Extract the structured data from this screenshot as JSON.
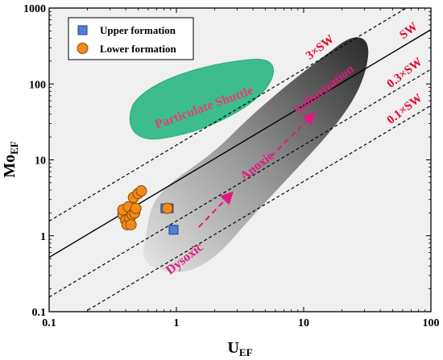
{
  "chart_data": {
    "type": "scatter",
    "xscale": "log",
    "yscale": "log",
    "xlim": [
      0.1,
      100
    ],
    "ylim": [
      0.1,
      1000
    ],
    "xlabel": "U",
    "xlabel_sub": "EF",
    "ylabel": "Mo",
    "ylabel_sub": "EF",
    "x_ticks": [
      0.1,
      1,
      10,
      100
    ],
    "x_tick_labels": [
      "0.1",
      "1",
      "10",
      "100"
    ],
    "y_ticks": [
      0.1,
      1,
      10,
      100,
      1000
    ],
    "y_tick_labels": [
      "0.1",
      "1",
      "10",
      "100",
      "1000"
    ],
    "legend": {
      "position": "top-left"
    },
    "series": [
      {
        "name": "Upper formation",
        "marker": "square",
        "color": "#4f7fd6",
        "points": [
          [
            0.82,
            2.3
          ],
          [
            0.87,
            2.3
          ],
          [
            0.95,
            1.2
          ]
        ]
      },
      {
        "name": "Lower formation",
        "marker": "circle",
        "color": "#f08a1c",
        "points": [
          [
            0.38,
            1.9
          ],
          [
            0.38,
            2.2
          ],
          [
            0.4,
            1.6
          ],
          [
            0.41,
            1.4
          ],
          [
            0.42,
            2.4
          ],
          [
            0.43,
            1.7
          ],
          [
            0.44,
            1.4
          ],
          [
            0.45,
            1.9
          ],
          [
            0.46,
            3.2
          ],
          [
            0.47,
            2.0
          ],
          [
            0.48,
            2.3
          ],
          [
            0.5,
            3.6
          ],
          [
            0.53,
            3.9
          ],
          [
            0.85,
            2.3
          ]
        ]
      }
    ],
    "reference_lines": [
      {
        "label": "3×SW",
        "ratio": 15.6,
        "style": "dashed",
        "label_color": "#e8002a"
      },
      {
        "label": "SW",
        "ratio": 5.2,
        "style": "solid",
        "label_color": "#e8002a"
      },
      {
        "label": "0.3×SW",
        "ratio": 1.56,
        "style": "dashed",
        "label_color": "#e8002a"
      },
      {
        "label": "0.1×SW",
        "ratio": 0.52,
        "style": "dashed",
        "label_color": "#e8002a"
      }
    ],
    "regions": [
      {
        "label": "Particulate Shuttle",
        "fill": "#3dbd8d",
        "label_color": "#e83c6a"
      },
      {
        "label": "Dysoxic",
        "label_color": "#e0197f"
      },
      {
        "label": "Anoxic",
        "label_color": "#e0197f"
      },
      {
        "label": "Sulfurization",
        "label_color": "#e0197f"
      }
    ],
    "trend_arrows": [
      {
        "from": [
          1.5,
          1.3
        ],
        "to": [
          2.7,
          3.6
        ],
        "color": "#e0197f"
      },
      {
        "from": [
          5.5,
          11
        ],
        "to": [
          12,
          40
        ],
        "color": "#e0197f"
      }
    ],
    "colors": {
      "plot_bg": "#f0f0f0",
      "gradient_light": "#e6e6e6",
      "gradient_dark": "#2a2a2a"
    }
  }
}
